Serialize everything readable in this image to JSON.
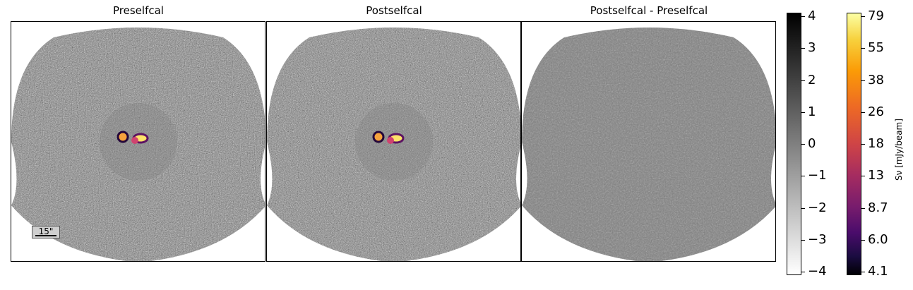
{
  "panels": [
    {
      "title": "Preselfcal"
    },
    {
      "title": "Postselfcal"
    },
    {
      "title": "Postselfcal - Preselfcal"
    }
  ],
  "scalebar": {
    "label": "15\""
  },
  "residual_colorbar": {
    "ticks": [
      "4",
      "3",
      "2",
      "1",
      "0",
      "−1",
      "−2",
      "−3",
      "−4"
    ],
    "colormap": "gray_r"
  },
  "flux_colorbar": {
    "label": "Sν [mJy/beam]",
    "ticks": [
      "79",
      "55",
      "38",
      "26",
      "18",
      "13",
      "8.7",
      "6.0",
      "4.1"
    ],
    "colormap": "inferno"
  }
}
